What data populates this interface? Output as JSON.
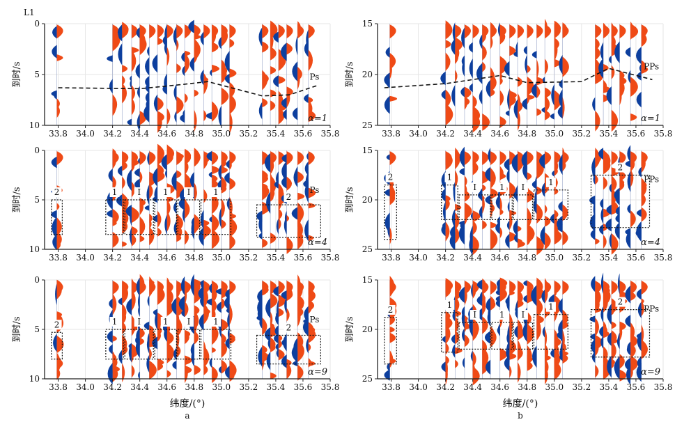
{
  "figure": {
    "xlabel": "纬度/(°)",
    "ylabel": "到时/s",
    "colors": {
      "positive": "#ef4a16",
      "negative": "#0d3f9e",
      "axis": "#222222",
      "grid": "#e6e6e6"
    },
    "column_labels": [
      "a",
      "b"
    ]
  },
  "chart_data": [
    {
      "type": "area",
      "id": "a1",
      "column": "a",
      "row": 1,
      "corner_label": "L1",
      "alpha_label": "α=1",
      "phase_label": "Ps",
      "xlim": [
        33.7,
        35.8
      ],
      "xticks": [
        "33.8",
        "34.0",
        "34.2",
        "34.4",
        "34.6",
        "34.8",
        "35.0",
        "35.2",
        "35.4",
        "35.6",
        "35.8"
      ],
      "ylim": [
        0,
        10
      ],
      "yticks": [
        "0",
        "5",
        "10"
      ],
      "y_reversed": true,
      "traces": [
        33.79,
        34.2,
        34.27,
        34.34,
        34.4,
        34.47,
        34.53,
        34.6,
        34.67,
        34.73,
        34.8,
        34.87,
        34.93,
        35.0,
        35.06,
        35.3,
        35.36,
        35.42,
        35.48,
        35.56,
        35.64
      ],
      "arrival_curve": {
        "x": [
          33.8,
          34.4,
          34.7,
          34.9,
          35.1,
          35.3,
          35.5,
          35.7
        ],
        "y": [
          6.3,
          6.4,
          6.0,
          5.7,
          6.4,
          7.1,
          7.0,
          6.1
        ]
      },
      "boxes": []
    },
    {
      "type": "area",
      "id": "b1",
      "column": "b",
      "row": 1,
      "alpha_label": "α=1",
      "phase_label": "PPs",
      "xlim": [
        33.7,
        35.8
      ],
      "xticks": [
        "33.8",
        "34.0",
        "34.2",
        "34.4",
        "34.6",
        "34.8",
        "35.0",
        "35.2",
        "35.4",
        "35.6",
        "35.8"
      ],
      "ylim": [
        15,
        25
      ],
      "yticks": [
        "15",
        "20",
        "25"
      ],
      "y_reversed": true,
      "traces": [
        33.79,
        34.2,
        34.27,
        34.34,
        34.4,
        34.47,
        34.53,
        34.6,
        34.67,
        34.73,
        34.8,
        34.87,
        34.93,
        35.0,
        35.06,
        35.3,
        35.36,
        35.42,
        35.48,
        35.56,
        35.64
      ],
      "arrival_curve": {
        "x": [
          33.75,
          34.2,
          34.6,
          34.8,
          35.2,
          35.4,
          35.72
        ],
        "y": [
          21.3,
          20.9,
          20.1,
          20.8,
          20.7,
          19.4,
          20.5
        ]
      },
      "boxes": []
    },
    {
      "type": "area",
      "id": "a2",
      "column": "a",
      "row": 2,
      "alpha_label": "α=4",
      "phase_label": "Ps",
      "xlim": [
        33.7,
        35.8
      ],
      "xticks": [
        "33.8",
        "34.0",
        "34.2",
        "34.4",
        "34.6",
        "34.8",
        "35.0",
        "35.2",
        "35.4",
        "35.6",
        "35.8"
      ],
      "ylim": [
        0,
        10
      ],
      "yticks": [
        "0",
        "5",
        "10"
      ],
      "y_reversed": true,
      "traces": [
        33.79,
        34.2,
        34.27,
        34.34,
        34.4,
        34.47,
        34.53,
        34.6,
        34.67,
        34.73,
        34.8,
        34.87,
        34.93,
        35.0,
        35.06,
        35.3,
        35.36,
        35.42,
        35.48,
        35.56,
        35.64
      ],
      "boxes": [
        {
          "label": "2",
          "x": [
            33.75,
            33.83
          ],
          "y": [
            5,
            8.5
          ]
        },
        {
          "label": "1",
          "x": [
            34.15,
            34.28
          ],
          "y": [
            5,
            8.5
          ]
        },
        {
          "label": "I",
          "x": [
            34.29,
            34.5
          ],
          "y": [
            5,
            8.5
          ]
        },
        {
          "label": "1",
          "x": [
            34.51,
            34.67
          ],
          "y": [
            5,
            8.5
          ]
        },
        {
          "label": "I",
          "x": [
            34.68,
            34.84
          ],
          "y": [
            5,
            8.5
          ]
        },
        {
          "label": "1",
          "x": [
            34.85,
            35.07
          ],
          "y": [
            5,
            8.5
          ]
        },
        {
          "label": "2",
          "x": [
            35.26,
            35.73
          ],
          "y": [
            5.5,
            8.8
          ]
        }
      ]
    },
    {
      "type": "area",
      "id": "b2",
      "column": "b",
      "row": 2,
      "alpha_label": "α=4",
      "phase_label": "PPs",
      "xlim": [
        33.7,
        35.8
      ],
      "xticks": [
        "33.8",
        "34.0",
        "34.2",
        "34.4",
        "34.6",
        "34.8",
        "35.0",
        "35.2",
        "35.4",
        "35.6",
        "35.8"
      ],
      "ylim": [
        15,
        25
      ],
      "yticks": [
        "15",
        "20",
        "25"
      ],
      "y_reversed": true,
      "traces": [
        33.79,
        34.2,
        34.27,
        34.34,
        34.4,
        34.47,
        34.53,
        34.6,
        34.67,
        34.73,
        34.8,
        34.87,
        34.93,
        35.0,
        35.06,
        35.3,
        35.36,
        35.42,
        35.48,
        35.56,
        35.64
      ],
      "boxes": [
        {
          "label": "2",
          "x": [
            33.75,
            33.84
          ],
          "y": [
            18.5,
            24
          ]
        },
        {
          "label": "1",
          "x": [
            34.17,
            34.29
          ],
          "y": [
            18.5,
            22
          ]
        },
        {
          "label": "I",
          "x": [
            34.3,
            34.53
          ],
          "y": [
            19.5,
            22
          ]
        },
        {
          "label": "1",
          "x": [
            34.54,
            34.69
          ],
          "y": [
            19.5,
            22
          ]
        },
        {
          "label": "I",
          "x": [
            34.7,
            34.84
          ],
          "y": [
            19.5,
            22
          ]
        },
        {
          "label": "1",
          "x": [
            34.85,
            35.1
          ],
          "y": [
            19,
            22
          ]
        },
        {
          "label": "2",
          "x": [
            35.27,
            35.7
          ],
          "y": [
            17.5,
            22.8
          ]
        }
      ]
    },
    {
      "type": "area",
      "id": "a3",
      "column": "a",
      "row": 3,
      "alpha_label": "α=9",
      "phase_label": "Ps",
      "xlim": [
        33.7,
        35.8
      ],
      "xticks": [
        "33.8",
        "34.0",
        "34.2",
        "34.4",
        "34.6",
        "34.8",
        "35.0",
        "35.2",
        "35.4",
        "35.6",
        "35.8"
      ],
      "ylim": [
        0,
        10
      ],
      "yticks": [
        "0",
        "5",
        "10"
      ],
      "y_reversed": true,
      "traces": [
        33.79,
        34.2,
        34.27,
        34.34,
        34.4,
        34.47,
        34.53,
        34.6,
        34.67,
        34.73,
        34.8,
        34.87,
        34.93,
        35.0,
        35.06,
        35.3,
        35.36,
        35.42,
        35.48,
        35.56,
        35.64
      ],
      "boxes": [
        {
          "label": "2",
          "x": [
            33.75,
            33.83
          ],
          "y": [
            5.3,
            8
          ]
        },
        {
          "label": "1",
          "x": [
            34.15,
            34.28
          ],
          "y": [
            5,
            8
          ]
        },
        {
          "label": "I",
          "x": [
            34.29,
            34.5
          ],
          "y": [
            5,
            8
          ]
        },
        {
          "label": "1",
          "x": [
            34.51,
            34.67
          ],
          "y": [
            5,
            8
          ]
        },
        {
          "label": "I",
          "x": [
            34.68,
            34.84
          ],
          "y": [
            5,
            8
          ]
        },
        {
          "label": "1",
          "x": [
            34.85,
            35.07
          ],
          "y": [
            5,
            8
          ]
        },
        {
          "label": "2",
          "x": [
            35.26,
            35.73
          ],
          "y": [
            5.6,
            8.5
          ]
        }
      ]
    },
    {
      "type": "area",
      "id": "b3",
      "column": "b",
      "row": 3,
      "alpha_label": "α=9",
      "phase_label": "PPs",
      "xlim": [
        33.7,
        35.8
      ],
      "xticks": [
        "33.8",
        "34.0",
        "34.2",
        "34.4",
        "34.6",
        "34.8",
        "35.0",
        "35.2",
        "35.4",
        "35.6",
        "35.8"
      ],
      "ylim": [
        15,
        25
      ],
      "yticks": [
        "15",
        "20",
        "25"
      ],
      "y_reversed": true,
      "traces": [
        33.79,
        34.2,
        34.27,
        34.34,
        34.4,
        34.47,
        34.53,
        34.6,
        34.67,
        34.73,
        34.8,
        34.87,
        34.93,
        35.0,
        35.06,
        35.3,
        35.36,
        35.42,
        35.48,
        35.56,
        35.64
      ],
      "boxes": [
        {
          "label": "2",
          "x": [
            33.75,
            33.84
          ],
          "y": [
            18.8,
            23.5
          ]
        },
        {
          "label": "1",
          "x": [
            34.17,
            34.29
          ],
          "y": [
            18.3,
            22.3
          ]
        },
        {
          "label": "I",
          "x": [
            34.3,
            34.53
          ],
          "y": [
            19.3,
            22
          ]
        },
        {
          "label": "1",
          "x": [
            34.54,
            34.69
          ],
          "y": [
            19.3,
            22
          ]
        },
        {
          "label": "I",
          "x": [
            34.7,
            34.84
          ],
          "y": [
            19.3,
            22
          ]
        },
        {
          "label": "1",
          "x": [
            34.85,
            35.1
          ],
          "y": [
            18.5,
            22
          ]
        },
        {
          "label": "2",
          "x": [
            35.27,
            35.7
          ],
          "y": [
            18,
            22.8
          ]
        }
      ]
    }
  ]
}
